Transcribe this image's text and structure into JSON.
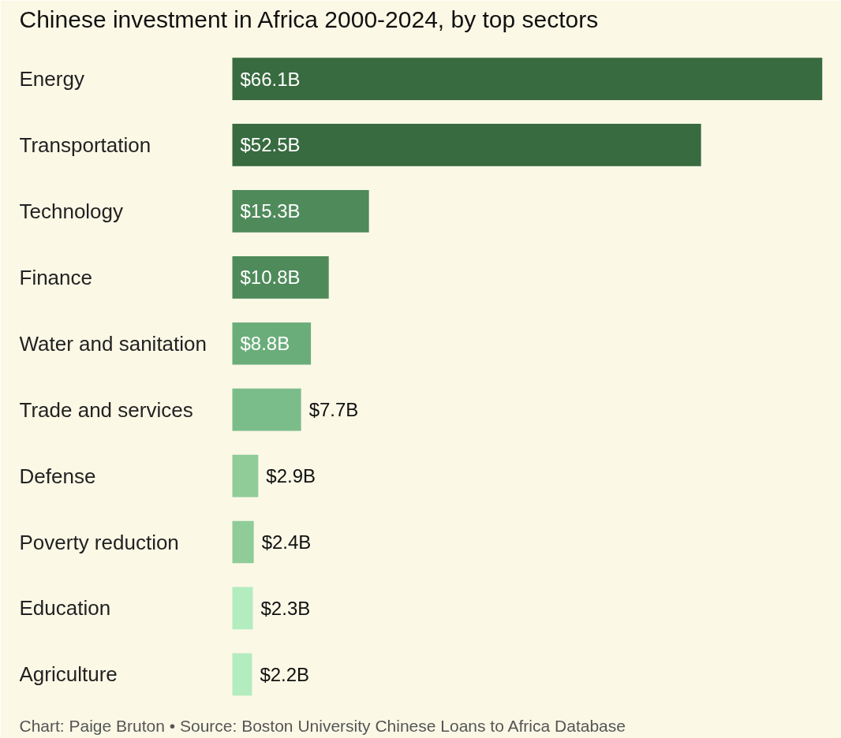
{
  "chart_data": {
    "type": "bar",
    "orientation": "horizontal",
    "title": "Chinese investment in Africa 2000-2024, by top sectors",
    "categories": [
      "Energy",
      "Transportation",
      "Technology",
      "Finance",
      "Water and sanitation",
      "Trade and services",
      "Defense",
      "Poverty reduction",
      "Education",
      "Agriculture"
    ],
    "values": [
      66.1,
      52.5,
      15.3,
      10.8,
      8.8,
      7.7,
      2.9,
      2.4,
      2.3,
      2.2
    ],
    "colors": [
      "#386b3f",
      "#386b3f",
      "#4f8a5b",
      "#4f8a5b",
      "#6aad7a",
      "#7bbd8a",
      "#8fcc98",
      "#8fcc98",
      "#b3ecbf",
      "#b3ecbf"
    ],
    "value_labels": [
      "$66.1B",
      "$52.5B",
      "$15.3B",
      "$10.8B",
      "$8.8B",
      "$7.7B",
      "$2.9B",
      "$2.4B",
      "$2.3B",
      "$2.2B"
    ],
    "annotations": [
      "Chart: Paige Bruton • Source: Boston University Chinese Loans to Africa Database"
    ]
  }
}
